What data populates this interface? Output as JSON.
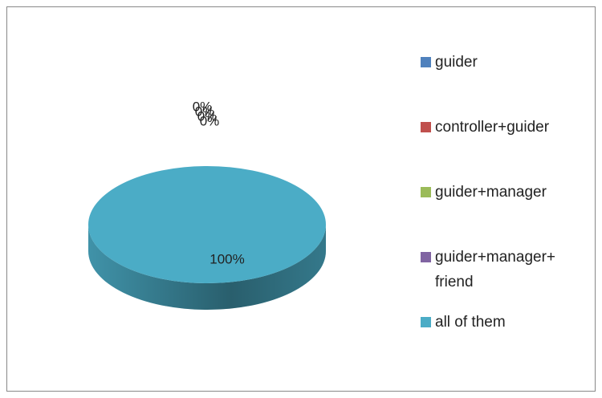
{
  "chart_data": {
    "type": "pie",
    "categories": [
      "guider",
      "controller+guider",
      "guider+manager",
      "guider+manager+ friend",
      "all of them"
    ],
    "values": [
      0,
      0,
      0,
      0,
      100
    ],
    "value_labels": [
      "0%",
      "0%",
      "0%",
      "0%",
      "100%"
    ],
    "colors": [
      "#4f81bd",
      "#c0504d",
      "#9bbb59",
      "#8064a2",
      "#4bacc6"
    ],
    "legend": "right"
  }
}
